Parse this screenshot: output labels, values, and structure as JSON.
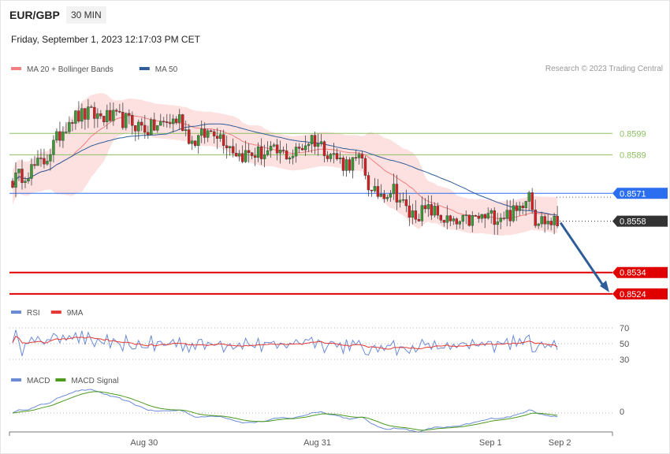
{
  "header": {
    "symbol": "EUR/GBP",
    "timeframe": "30 MIN",
    "datetime": "Friday, September 1, 2023 12:17:03 PM CET"
  },
  "credit": "Research © 2023 Trading Central",
  "colors": {
    "bollinger": "#f28080",
    "band_fill": "#fde0e0",
    "ma50": "#2f5d9a",
    "up": "#3a9a33",
    "down": "#d32020",
    "resistance": "#8ec063",
    "pivot": "#2b6ff0",
    "support": "#e00000",
    "current": "#333333",
    "arrow": "#2f5d9a",
    "rsi": "#6b8bd6",
    "rsi_ma": "#e53935",
    "macd": "#6b8bd6",
    "macd_signal": "#4d9a1f"
  },
  "price_panel": {
    "legend": [
      {
        "label": "MA 20 + Bollinger Bands",
        "color": "#f28080"
      },
      {
        "label": "MA 50",
        "color": "#2f5d9a"
      }
    ],
    "levels": [
      {
        "value": 0.8599,
        "label": "0.8599",
        "kind": "resistance"
      },
      {
        "value": 0.8589,
        "label": "0.8589",
        "kind": "resistance"
      },
      {
        "value": 0.8571,
        "label": "0.8571",
        "kind": "pivot"
      },
      {
        "value": 0.8558,
        "label": "0.8558",
        "kind": "current"
      },
      {
        "value": 0.8534,
        "label": "0.8534",
        "kind": "support"
      },
      {
        "value": 0.8524,
        "label": "0.8524",
        "kind": "support"
      }
    ]
  },
  "rsi_panel": {
    "legend": [
      {
        "label": "RSI",
        "color": "#6b8bd6"
      },
      {
        "label": "9MA",
        "color": "#e53935"
      }
    ],
    "ticks": [
      70,
      50,
      30
    ],
    "tick_labels": [
      "70",
      "50",
      "30"
    ]
  },
  "macd_panel": {
    "legend": [
      {
        "label": "MACD",
        "color": "#6b8bd6"
      },
      {
        "label": "MACD Signal",
        "color": "#4d9a1f"
      }
    ],
    "zero_label": "0"
  },
  "x_axis": {
    "labels": [
      "Aug 30",
      "Aug 31",
      "Sep 1",
      "Sep 2"
    ],
    "label_bar": [
      40,
      95,
      150,
      172
    ]
  },
  "chart_data": {
    "type": "candlestick",
    "title": "EUR/GBP",
    "interval": "30 MIN",
    "bars_count": 174,
    "ylim": [
      0.8521,
      0.8626
    ],
    "rsi_ylim": [
      20,
      80
    ],
    "key_points": [
      {
        "bar": 0,
        "price": 0.8577
      },
      {
        "bar": 10,
        "price": 0.8586
      },
      {
        "bar": 18,
        "price": 0.8606
      },
      {
        "bar": 24,
        "price": 0.8608
      },
      {
        "bar": 36,
        "price": 0.8605
      },
      {
        "bar": 43,
        "price": 0.8601
      },
      {
        "bar": 53,
        "price": 0.8606
      },
      {
        "bar": 57,
        "price": 0.8595
      },
      {
        "bar": 64,
        "price": 0.8601
      },
      {
        "bar": 72,
        "price": 0.8589
      },
      {
        "bar": 82,
        "price": 0.859
      },
      {
        "bar": 89,
        "price": 0.8589
      },
      {
        "bar": 95,
        "price": 0.8597
      },
      {
        "bar": 105,
        "price": 0.8585
      },
      {
        "bar": 111,
        "price": 0.8586
      },
      {
        "bar": 114,
        "price": 0.857
      },
      {
        "bar": 121,
        "price": 0.8573
      },
      {
        "bar": 126,
        "price": 0.8561
      },
      {
        "bar": 133,
        "price": 0.8563
      },
      {
        "bar": 140,
        "price": 0.8556
      },
      {
        "bar": 147,
        "price": 0.8559
      },
      {
        "bar": 160,
        "price": 0.8562
      },
      {
        "bar": 164,
        "price": 0.8573
      },
      {
        "bar": 166,
        "price": 0.8559
      },
      {
        "bar": 173,
        "price": 0.8557
      }
    ],
    "forecast": {
      "from_bar": 173,
      "from_price": 0.8558,
      "to_price": 0.8524
    }
  }
}
